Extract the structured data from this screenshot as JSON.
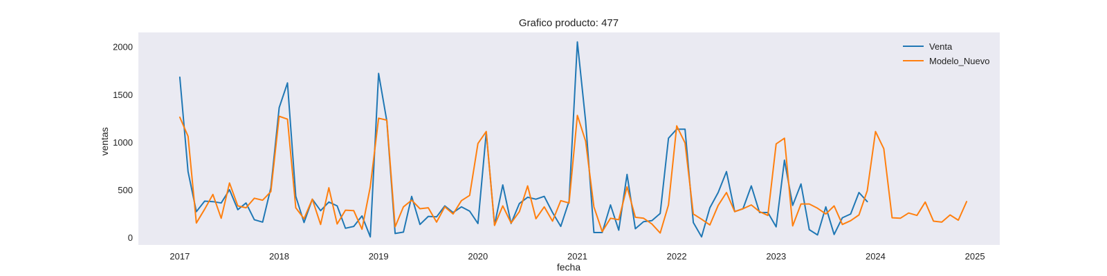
{
  "chart_data": {
    "type": "line",
    "title": "Grafico producto: 477",
    "xlabel": "fecha",
    "ylabel": "ventas",
    "x_start": "2017-01",
    "x_ticks": [
      "2017",
      "2018",
      "2019",
      "2020",
      "2021",
      "2022",
      "2023",
      "2024",
      "2025"
    ],
    "y_ticks": [
      0,
      500,
      1000,
      1500,
      2000
    ],
    "xlim": [
      "2016-08",
      "2025-04"
    ],
    "ylim": [
      -80,
      2150
    ],
    "grid": false,
    "legend": "top-right",
    "background": "#eaeaf2",
    "series": [
      {
        "name": "Venta",
        "color": "#1f77b4",
        "values": [
          1680,
          690,
          270,
          380,
          375,
          360,
          500,
          290,
          360,
          185,
          160,
          520,
          1360,
          1620,
          430,
          155,
          400,
          280,
          370,
          330,
          95,
          115,
          225,
          5,
          1720,
          1220,
          40,
          55,
          430,
          135,
          220,
          215,
          330,
          260,
          320,
          275,
          145,
          1100,
          130,
          550,
          145,
          355,
          420,
          400,
          430,
          260,
          115,
          380,
          2050,
          1220,
          50,
          50,
          340,
          75,
          660,
          90,
          165,
          175,
          250,
          1040,
          1135,
          1135,
          155,
          5,
          310,
          470,
          690,
          270,
          300,
          540,
          260,
          260,
          110,
          810,
          335,
          560,
          80,
          25,
          320,
          30,
          205,
          245,
          470,
          375
        ]
      },
      {
        "name": "Modelo_Nuevo",
        "color": "#ff7f0e",
        "values": [
          1260,
          1060,
          150,
          295,
          450,
          200,
          570,
          330,
          310,
          410,
          390,
          480,
          1270,
          1240,
          310,
          195,
          400,
          135,
          520,
          140,
          285,
          280,
          85,
          530,
          1250,
          1230,
          110,
          320,
          390,
          300,
          310,
          160,
          320,
          245,
          385,
          440,
          985,
          1110,
          125,
          330,
          150,
          270,
          540,
          195,
          320,
          170,
          385,
          360,
          1280,
          1010,
          320,
          60,
          200,
          185,
          530,
          210,
          200,
          140,
          45,
          340,
          1170,
          990,
          245,
          190,
          130,
          335,
          470,
          270,
          300,
          340,
          270,
          230,
          980,
          1040,
          120,
          350,
          350,
          305,
          245,
          330,
          135,
          175,
          235,
          490,
          1110,
          930,
          205,
          200,
          255,
          230,
          370,
          170,
          160,
          235,
          180,
          375
        ]
      }
    ]
  }
}
